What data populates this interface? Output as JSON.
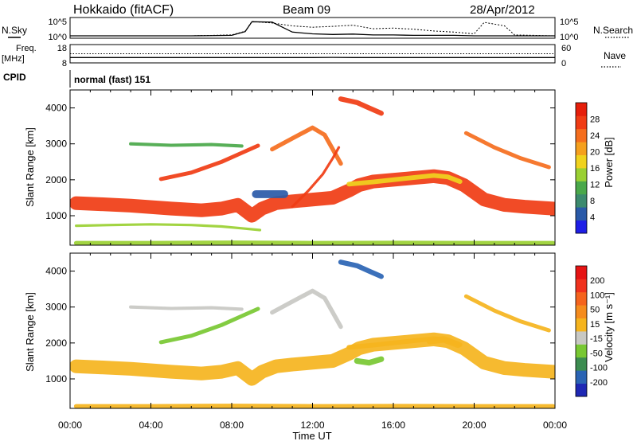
{
  "header": {
    "station": "Hokkaido (fitACF)",
    "beam": "Beam 09",
    "date": "28/Apr/2012"
  },
  "chart_data": [
    {
      "type": "line",
      "panel": "N.Sky / N.Search",
      "left_label": "N.Sky",
      "right_label": "N.Search",
      "ytick_labels": [
        "10^5",
        "10^0"
      ],
      "log_scale": true,
      "x": [
        "00:00",
        "02:00",
        "04:00",
        "06:00",
        "08:00",
        "08:40",
        "09:00",
        "10:00",
        "11:00",
        "12:00",
        "13:00",
        "14:00",
        "15:00",
        "16:00",
        "17:00",
        "18:00",
        "19:00",
        "20:00",
        "20:30",
        "21:30",
        "22:00",
        "24:00"
      ],
      "series": [
        {
          "name": "N.Sky",
          "style": "solid",
          "values": [
            1,
            1,
            1,
            1,
            1.5,
            30,
            80000,
            60000,
            20,
            5,
            3,
            4,
            2,
            2,
            1.5,
            1.5,
            1.5,
            1,
            1,
            1,
            1,
            1
          ]
        },
        {
          "name": "N.Search",
          "style": "dotted",
          "values": [
            1,
            1,
            1,
            1,
            2,
            40,
            100000,
            30000,
            3000,
            1000,
            2000,
            5000,
            300,
            500,
            200,
            50,
            20,
            5,
            50000,
            3000,
            2,
            1
          ]
        }
      ]
    },
    {
      "type": "line",
      "panel": "Freq / Nave",
      "left_label": "Freq.",
      "left_unit": "[MHz]",
      "right_label": "Nave",
      "left_ticks": [
        "18",
        "8"
      ],
      "right_ticks": [
        "60",
        "0"
      ],
      "x": [
        "00:00",
        "12:00",
        "13:00",
        "14:00",
        "24:00"
      ],
      "series": [
        {
          "name": "Freq.",
          "style": "solid",
          "values": [
            10.2,
            10.2,
            10.3,
            10.2,
            10.2
          ]
        },
        {
          "name": "Nave",
          "style": "dotted",
          "values": [
            30,
            30,
            30,
            30,
            30
          ]
        }
      ]
    },
    {
      "type": "text",
      "panel": "CPID",
      "label": "CPID",
      "value": "normal (fast) 151"
    },
    {
      "type": "heatmap",
      "panel": "Power",
      "ylabel": "Slant Range [km]",
      "yticks": [
        1000,
        2000,
        3000,
        4000
      ],
      "ylim": [
        180,
        4500
      ],
      "xlim": [
        "00:00",
        "24:00"
      ],
      "colorbar": {
        "label": "Power [dB]",
        "ticks": [
          "4",
          "8",
          "12",
          "16",
          "20",
          "24",
          "28"
        ],
        "colors": [
          "#1e1ee6",
          "#2a5aa8",
          "#3c8a6e",
          "#4aa84a",
          "#9ad032",
          "#f0d21e",
          "#f5a01e",
          "#f56e1e",
          "#f03c14",
          "#e61e0a"
        ],
        "range": [
          0,
          32
        ]
      },
      "bands": [
        {
          "x": [
            0.3,
            1.5,
            3,
            5,
            6.5,
            7.5,
            8.3,
            9,
            9.5,
            10.2,
            11,
            12,
            13,
            13.8,
            14.3,
            15,
            16,
            17,
            18,
            18.7,
            19.5,
            20.5,
            21.5,
            22.5,
            23.9
          ],
          "y": [
            1350,
            1320,
            1280,
            1200,
            1150,
            1200,
            1300,
            1000,
            1200,
            1350,
            1400,
            1450,
            1500,
            1700,
            1850,
            1950,
            2000,
            2050,
            2100,
            2050,
            1850,
            1450,
            1300,
            1250,
            1200
          ],
          "thickness": 380,
          "value": 27
        },
        {
          "x": [
            13.8,
            15,
            16,
            17,
            18,
            18.7,
            19.3
          ],
          "y": [
            1880,
            1940,
            2000,
            2060,
            2120,
            2080,
            1950
          ],
          "thickness": 130,
          "value": 17
        },
        {
          "x": [
            0.3,
            2,
            4,
            6,
            7.5,
            8.5,
            9.4
          ],
          "y": [
            720,
            740,
            760,
            740,
            700,
            650,
            600
          ],
          "thickness": 70,
          "value": 14
        },
        {
          "x": [
            0.3,
            4,
            8,
            12,
            16,
            20,
            23.9
          ],
          "y": [
            240,
            240,
            250,
            240,
            245,
            240,
            240
          ],
          "thickness": 120,
          "value": 13
        },
        {
          "x": [
            4.5,
            6,
            7.5,
            8.5,
            9.3
          ],
          "y": [
            2020,
            2200,
            2500,
            2750,
            2950
          ],
          "thickness": 110,
          "value": 26
        },
        {
          "x": [
            10,
            11,
            12,
            12.6,
            13,
            13.4
          ],
          "y": [
            2850,
            3150,
            3450,
            3250,
            2850,
            2450
          ],
          "thickness": 120,
          "value": 25
        },
        {
          "x": [
            11,
            11.8,
            12.5,
            13,
            13.3
          ],
          "y": [
            1250,
            1700,
            2150,
            2600,
            2900
          ],
          "thickness": 70,
          "value": 27
        },
        {
          "x": [
            13.4,
            14.2,
            14.8,
            15.4
          ],
          "y": [
            4250,
            4150,
            4000,
            3850
          ],
          "thickness": 140,
          "value": 26
        },
        {
          "x": [
            19.6,
            21,
            22.3,
            23.7
          ],
          "y": [
            3300,
            2900,
            2600,
            2350
          ],
          "thickness": 110,
          "value": 24
        },
        {
          "x": [
            3,
            5,
            7,
            8.5
          ],
          "y": [
            3000,
            2960,
            2980,
            2940
          ],
          "thickness": 90,
          "value": 11
        },
        {
          "x": [
            9.2,
            10.6
          ],
          "y": [
            1600,
            1600
          ],
          "thickness": 220,
          "value": 6
        }
      ]
    },
    {
      "type": "heatmap",
      "panel": "Velocity",
      "ylabel": "Slant Range [km]",
      "yticks": [
        1000,
        2000,
        3000,
        4000
      ],
      "ylim": [
        180,
        4500
      ],
      "xlim": [
        "00:00",
        "24:00"
      ],
      "colorbar": {
        "label": "Velocity [m s⁻¹]",
        "ticks": [
          "200",
          "100",
          "50",
          "15",
          "-15",
          "-50",
          "-100",
          "-200"
        ],
        "colors": [
          "#1e28b4",
          "#2a64b4",
          "#3c8c50",
          "#78c832",
          "#c8c8c3",
          "#f5b41e",
          "#f58c1e",
          "#f5641e",
          "#f0321e",
          "#e61414"
        ],
        "range": [
          -250,
          250
        ]
      },
      "bands": [
        {
          "x": [
            0.3,
            1.5,
            3,
            5,
            6.5,
            7.5,
            8.3,
            9,
            9.5,
            10.2,
            11,
            12,
            13,
            13.8,
            14.3,
            15,
            16,
            17,
            18,
            18.7,
            19.5,
            20.5,
            21.5,
            22.5,
            23.9
          ],
          "y": [
            1350,
            1320,
            1280,
            1200,
            1150,
            1200,
            1300,
            1000,
            1200,
            1350,
            1400,
            1450,
            1500,
            1700,
            1850,
            1950,
            2000,
            2050,
            2100,
            2050,
            1850,
            1450,
            1300,
            1250,
            1200
          ],
          "thickness": 380,
          "value": 0
        },
        {
          "x": [
            13.8,
            15,
            16,
            17,
            18,
            18.7,
            19.3
          ],
          "y": [
            1880,
            1940,
            2000,
            2060,
            2120,
            2080,
            1950
          ],
          "thickness": 130,
          "value": 0
        },
        {
          "x": [
            17.8,
            18.5,
            19.2
          ],
          "y": [
            2050,
            2100,
            1950
          ],
          "thickness": 180,
          "value": 30
        },
        {
          "x": [
            4.5,
            6,
            7.5,
            8.5,
            9.3
          ],
          "y": [
            2020,
            2200,
            2500,
            2750,
            2950
          ],
          "thickness": 110,
          "value": -60
        },
        {
          "x": [
            10,
            11,
            12,
            12.6,
            13,
            13.4
          ],
          "y": [
            2850,
            3150,
            3450,
            3250,
            2850,
            2450
          ],
          "thickness": 120,
          "value": -40
        },
        {
          "x": [
            13.4,
            14.2,
            14.8,
            15.4
          ],
          "y": [
            4250,
            4150,
            4000,
            3850
          ],
          "thickness": 140,
          "value": -200
        },
        {
          "x": [
            14.2,
            14.8,
            15.4
          ],
          "y": [
            1500,
            1450,
            1550
          ],
          "thickness": 160,
          "value": -80
        },
        {
          "x": [
            0.3,
            4,
            8,
            12,
            16,
            20,
            23.9
          ],
          "y": [
            240,
            240,
            250,
            240,
            245,
            240,
            240
          ],
          "thickness": 120,
          "value": 0
        },
        {
          "x": [
            19.6,
            21,
            22.3,
            23.7
          ],
          "y": [
            3300,
            2900,
            2600,
            2350
          ],
          "thickness": 110,
          "value": 0
        },
        {
          "x": [
            3,
            5,
            7,
            8.5
          ],
          "y": [
            3000,
            2960,
            2980,
            2940
          ],
          "thickness": 90,
          "value": -30
        }
      ]
    }
  ],
  "xaxis": {
    "label": "Time UT",
    "ticks": [
      "00:00",
      "04:00",
      "08:00",
      "12:00",
      "16:00",
      "20:00",
      "00:00"
    ],
    "tick_hours": [
      0,
      4,
      8,
      12,
      16,
      20,
      24
    ]
  }
}
